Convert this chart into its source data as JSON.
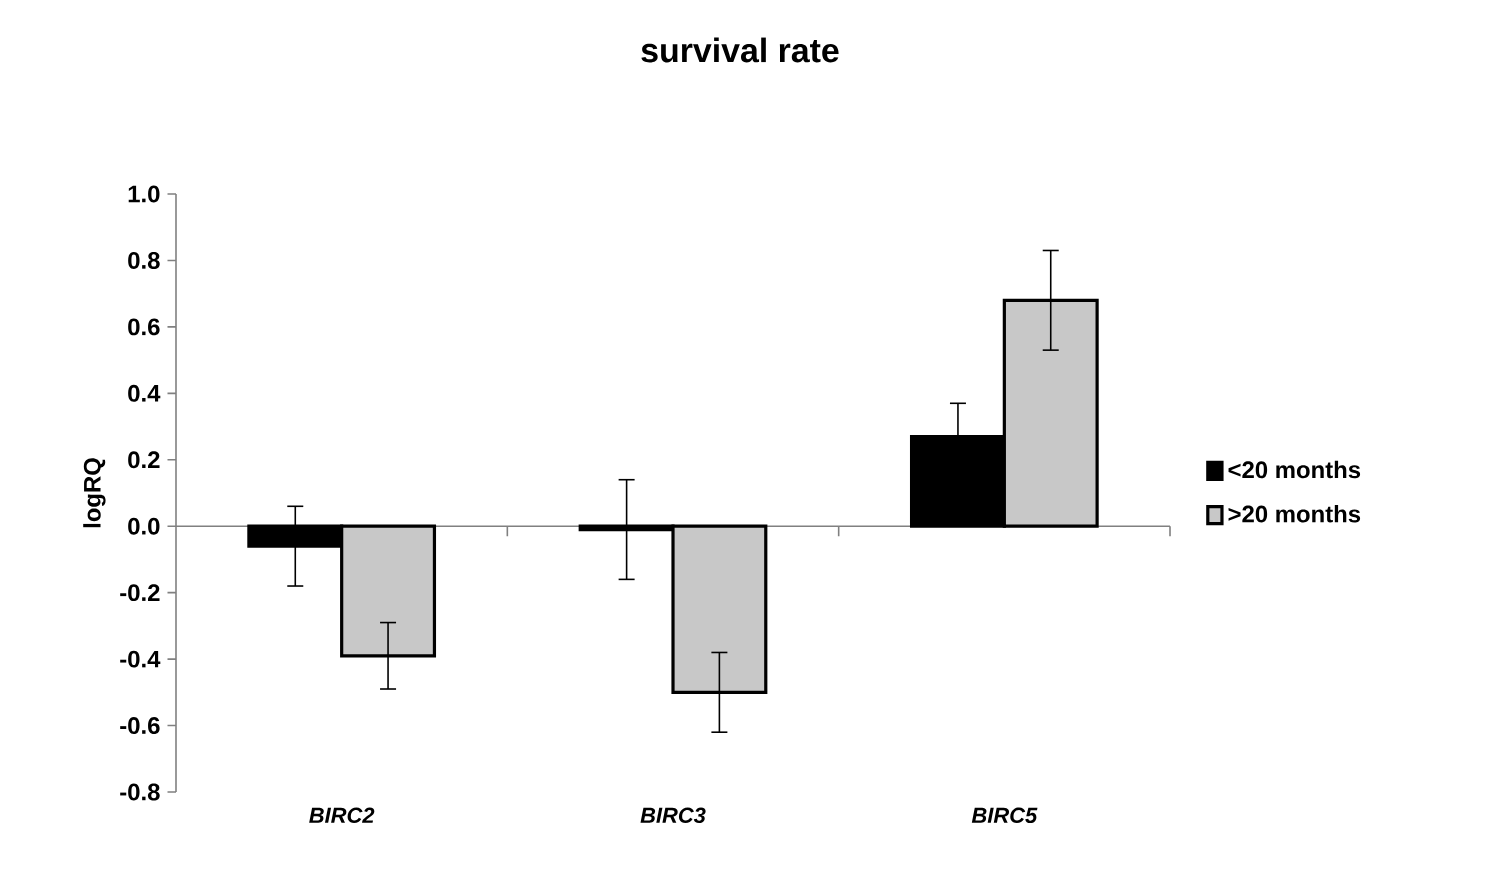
{
  "chart_data": {
    "type": "bar",
    "title": "survival rate",
    "ylabel": "logRQ",
    "categories": [
      "BIRC2",
      "BIRC3",
      "BIRC5"
    ],
    "series": [
      {
        "name": "<20 months",
        "color": "#000000",
        "values": [
          -0.06,
          -0.01,
          0.27
        ],
        "errors": [
          0.12,
          0.15,
          0.1
        ]
      },
      {
        "name": ">20 months",
        "color": "#c8c8c8",
        "values": [
          -0.39,
          -0.5,
          0.68
        ],
        "errors": [
          0.1,
          0.12,
          0.15
        ]
      }
    ],
    "ylim": [
      -0.8,
      1.0
    ],
    "yticks": [
      {
        "value": -0.8,
        "label": "-0.8"
      },
      {
        "value": -0.6,
        "label": "-0.6"
      },
      {
        "value": -0.4,
        "label": "-0.4"
      },
      {
        "value": -0.2,
        "label": "-0.2"
      },
      {
        "value": 0,
        "label": "0.0"
      },
      {
        "value": 0.2,
        "label": "0.2"
      },
      {
        "value": 0.4,
        "label": "0.4"
      },
      {
        "value": 0.6,
        "label": "0.6"
      },
      {
        "value": 0.8,
        "label": "0.8"
      },
      {
        "value": 1.0,
        "label": "1.0"
      }
    ],
    "legend": "right"
  }
}
